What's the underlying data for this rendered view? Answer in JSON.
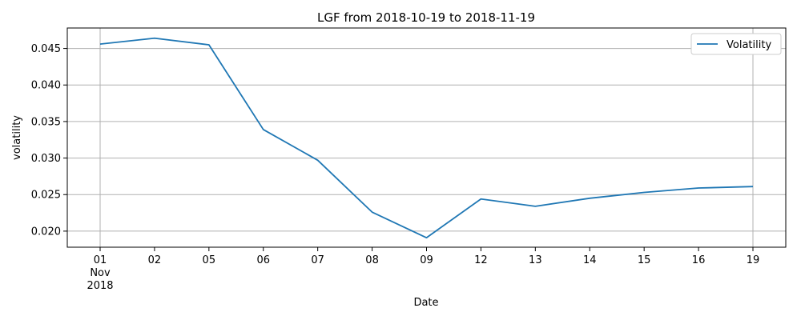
{
  "chart_data": {
    "type": "line",
    "title": "LGF from 2018-10-19 to 2018-11-19",
    "xlabel": "Date",
    "ylabel": "volatility",
    "x": [
      "2018-11-01",
      "2018-11-02",
      "2018-11-05",
      "2018-11-06",
      "2018-11-07",
      "2018-11-08",
      "2018-11-09",
      "2018-11-12",
      "2018-11-13",
      "2018-11-14",
      "2018-11-15",
      "2018-11-16",
      "2018-11-19"
    ],
    "x_tick_labels": [
      "01",
      "02",
      "05",
      "06",
      "07",
      "08",
      "09",
      "12",
      "13",
      "14",
      "15",
      "16",
      "19"
    ],
    "x_tick_sublabel": {
      "month": "Nov",
      "year": "2018"
    },
    "series": [
      {
        "name": "Volatility",
        "color": "#1f77b4",
        "values": [
          0.0456,
          0.0464,
          0.0455,
          0.0339,
          0.0297,
          0.0226,
          0.0191,
          0.0244,
          0.0234,
          0.0245,
          0.0253,
          0.0259,
          0.0261
        ]
      }
    ],
    "ylim": [
      0.0178,
      0.0478
    ],
    "y_ticks": [
      "0.020",
      "0.025",
      "0.030",
      "0.035",
      "0.040",
      "0.045"
    ],
    "y_tick_values": [
      0.02,
      0.025,
      0.03,
      0.035,
      0.04,
      0.045
    ],
    "grid": true,
    "legend_position": "top-right"
  }
}
